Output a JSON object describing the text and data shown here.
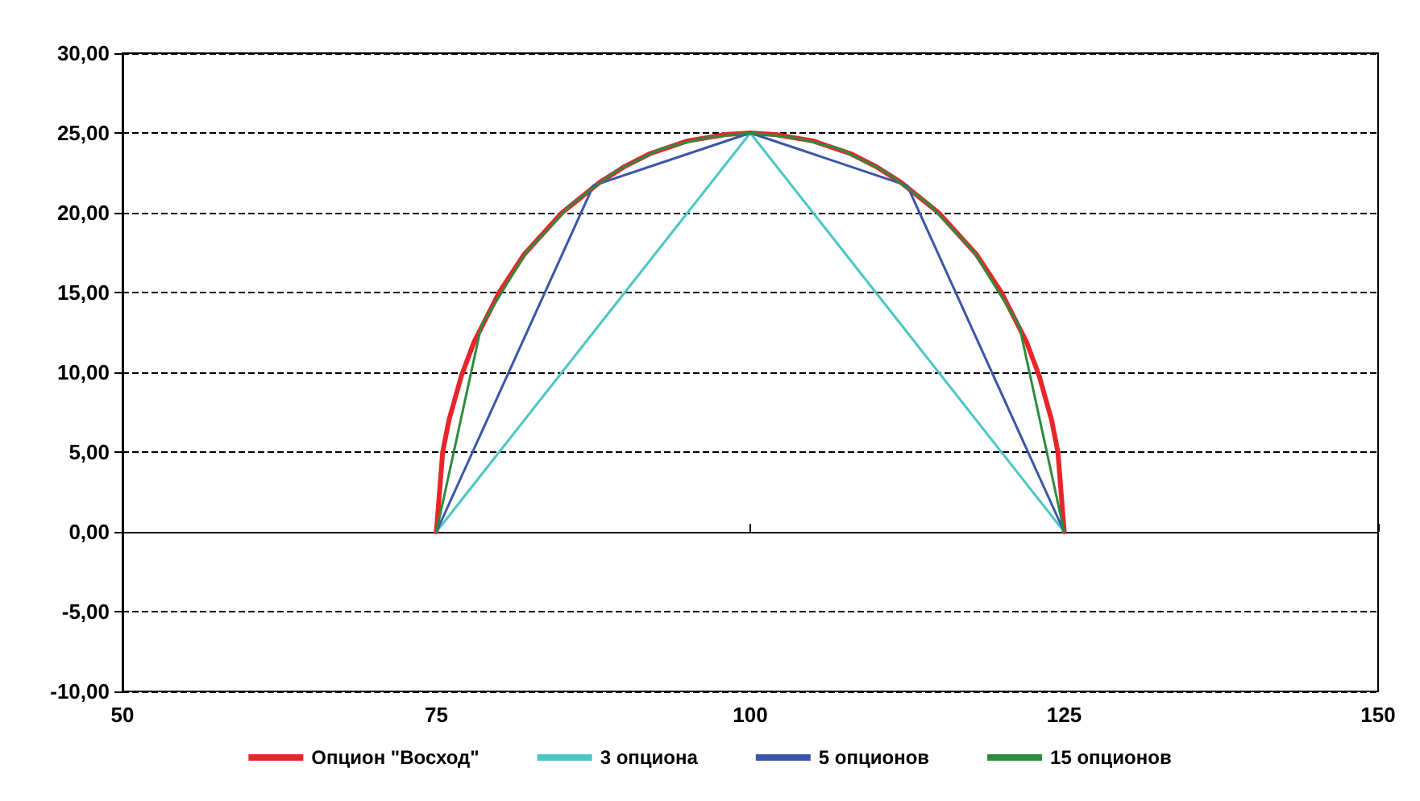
{
  "chart_data": {
    "type": "line",
    "xlim": [
      50,
      150
    ],
    "xticks": [
      50,
      75,
      100,
      125,
      150
    ],
    "ylim": [
      -10,
      30
    ],
    "yticks": [
      {
        "value": -10,
        "label": "-10,00"
      },
      {
        "value": -5,
        "label": "-5,00"
      },
      {
        "value": 0,
        "label": "0,00"
      },
      {
        "value": 5,
        "label": "5,00"
      },
      {
        "value": 10,
        "label": "10,00"
      },
      {
        "value": 15,
        "label": "15,00"
      },
      {
        "value": 20,
        "label": "20,00"
      },
      {
        "value": 25,
        "label": "25,00"
      },
      {
        "value": 30,
        "label": "30,00"
      }
    ],
    "grid": "y",
    "legend": "bottom",
    "marker": "none",
    "line_style": "solid",
    "series": [
      {
        "name": "Опцион \"Восход\"",
        "color": "#e8262a",
        "x": [
          75,
          75.5,
          76,
          77,
          78,
          80,
          82,
          85,
          88,
          90,
          92,
          95,
          98,
          100,
          102,
          105,
          108,
          110,
          112,
          115,
          118,
          120,
          122,
          123,
          124,
          124.5,
          125
        ],
        "values": [
          0,
          5,
          7,
          9.8,
          11.9,
          15,
          17.4,
          20,
          21.9,
          22.9,
          23.7,
          24.5,
          24.9,
          25,
          24.9,
          24.5,
          23.7,
          22.9,
          21.9,
          20,
          17.4,
          15,
          11.9,
          9.8,
          7,
          5,
          0
        ]
      },
      {
        "name": "3 опциона",
        "color": "#4cc6c4",
        "x": [
          75,
          100,
          125
        ],
        "values": [
          0,
          25,
          0
        ]
      },
      {
        "name": "5 опционов",
        "color": "#3b55a8",
        "x": [
          75,
          87.5,
          100,
          112.5,
          125
        ],
        "values": [
          0,
          21.7,
          25,
          21.7,
          0
        ]
      },
      {
        "name": "15 опционов",
        "color": "#2e8b3e",
        "x": [
          75,
          78.57,
          82.14,
          85.71,
          89.29,
          92.86,
          96.43,
          100,
          103.57,
          107.14,
          110.71,
          114.29,
          117.86,
          121.43,
          125
        ],
        "values": [
          0,
          12.9,
          17.5,
          20.5,
          22.6,
          24,
          24.7,
          25,
          24.7,
          24,
          22.6,
          20.5,
          17.5,
          12.9,
          0
        ]
      }
    ]
  }
}
